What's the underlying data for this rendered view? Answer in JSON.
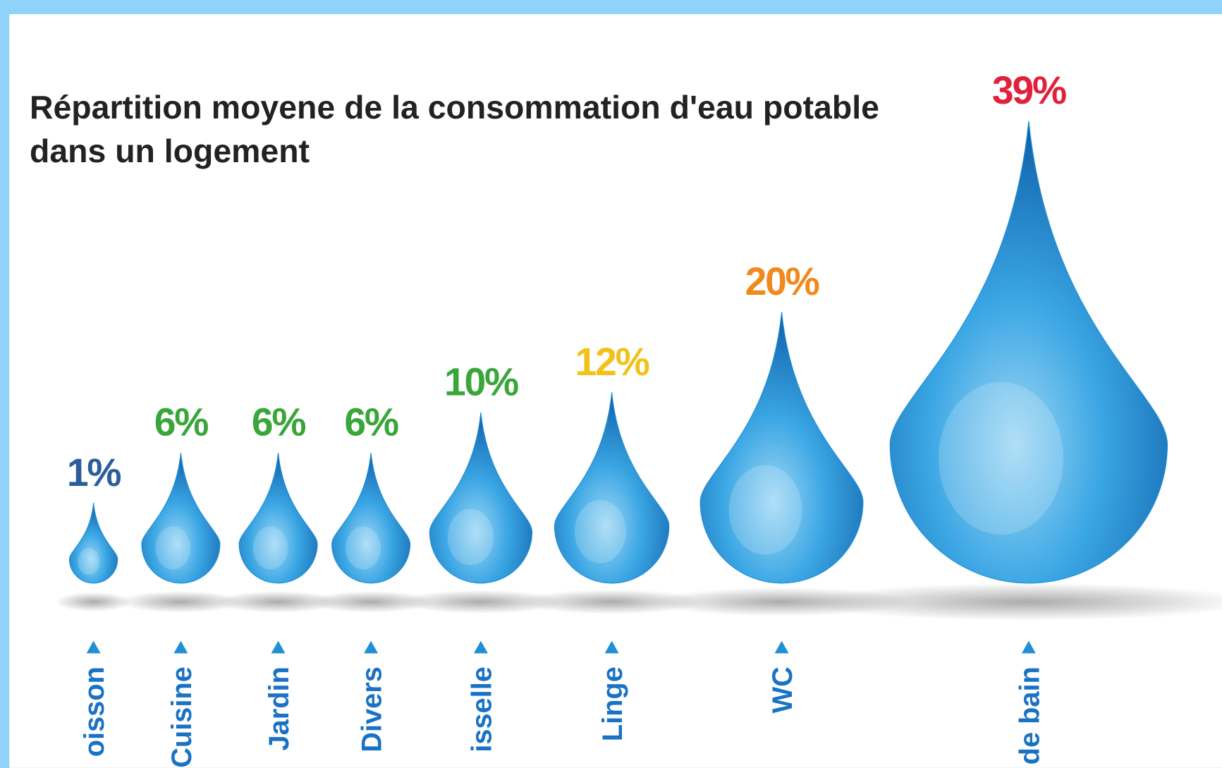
{
  "chart_data": {
    "type": "drop",
    "title": [
      "Répartition moyene de la consommation d'eau potable",
      "dans un logement"
    ],
    "categories": [
      "oisson",
      "Cuisine",
      "Jardin",
      "Divers",
      "isselle",
      "Linge",
      "WC",
      "de bain"
    ],
    "values": [
      1,
      6,
      6,
      6,
      10,
      12,
      20,
      39
    ],
    "value_labels": [
      "1%",
      "6%",
      "6%",
      "6%",
      "10%",
      "12%",
      "20%",
      "39%"
    ],
    "value_label_colors": [
      "#2a5d9a",
      "#3aa63a",
      "#3aa63a",
      "#3aa63a",
      "#3aa63a",
      "#f2c21a",
      "#f08a1e",
      "#e0213a"
    ],
    "color": "#1f8fd6"
  }
}
